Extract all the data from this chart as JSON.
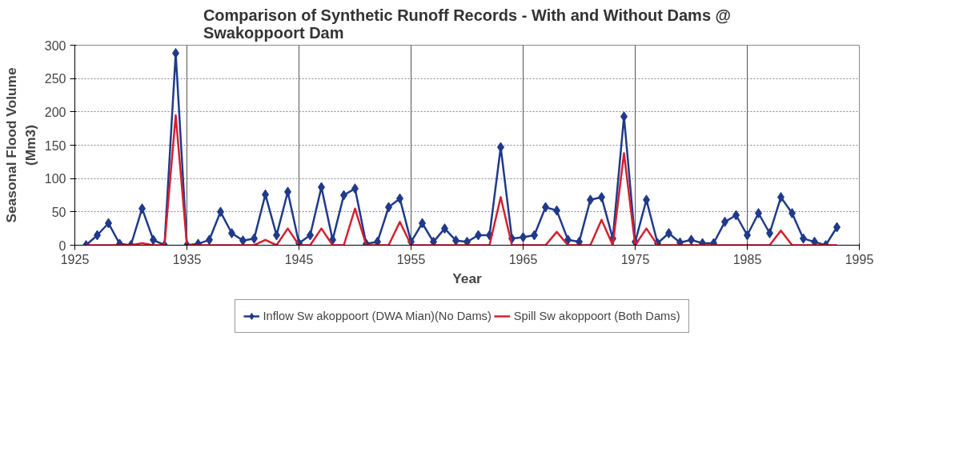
{
  "chart_data": {
    "type": "line",
    "title": "Comparison of Synthetic Runoff Records - With and Without Dams @\nSwakoppoort Dam",
    "xlabel": "Year",
    "ylabel": "Seasonal Flood Volume\n(Mm3)",
    "x": [
      1926,
      1927,
      1928,
      1929,
      1930,
      1931,
      1932,
      1933,
      1934,
      1935,
      1936,
      1937,
      1938,
      1939,
      1940,
      1941,
      1942,
      1943,
      1944,
      1945,
      1946,
      1947,
      1948,
      1949,
      1950,
      1951,
      1952,
      1953,
      1954,
      1955,
      1956,
      1957,
      1958,
      1959,
      1960,
      1961,
      1962,
      1963,
      1964,
      1965,
      1966,
      1967,
      1968,
      1969,
      1970,
      1971,
      1972,
      1973,
      1974,
      1975,
      1976,
      1977,
      1978,
      1979,
      1980,
      1981,
      1982,
      1983,
      1984,
      1985,
      1986,
      1987,
      1988,
      1989,
      1990,
      1991,
      1992,
      1993
    ],
    "series": [
      {
        "name": "Inflow Sw akoppoort (DWA Mian)(No Dams)",
        "color": "#1f3a8a",
        "marker": "diamond",
        "values": [
          0,
          15,
          33,
          2,
          0,
          55,
          8,
          0,
          288,
          0,
          2,
          8,
          50,
          18,
          7,
          10,
          76,
          15,
          80,
          3,
          15,
          87,
          8,
          75,
          85,
          2,
          5,
          57,
          70,
          5,
          33,
          5,
          25,
          7,
          5,
          15,
          15,
          147,
          10,
          12,
          15,
          57,
          52,
          8,
          5,
          68,
          72,
          10,
          193,
          5,
          68,
          3,
          18,
          4,
          8,
          3,
          3,
          35,
          45,
          15,
          48,
          18,
          72,
          48,
          10,
          5,
          0,
          27
        ]
      },
      {
        "name": "Spill Sw akoppoort (Both Dams)",
        "color": "#d42030",
        "marker": "none",
        "values": [
          0,
          0,
          0,
          0,
          0,
          3,
          0,
          0,
          195,
          0,
          0,
          0,
          0,
          0,
          0,
          0,
          8,
          0,
          25,
          0,
          0,
          25,
          0,
          0,
          55,
          0,
          0,
          0,
          35,
          0,
          0,
          0,
          0,
          0,
          0,
          0,
          0,
          72,
          0,
          0,
          0,
          0,
          20,
          0,
          0,
          0,
          38,
          0,
          138,
          0,
          25,
          0,
          0,
          0,
          0,
          0,
          0,
          0,
          0,
          0,
          0,
          0,
          22,
          0,
          0,
          0,
          0,
          0
        ]
      }
    ],
    "xlim": [
      1925,
      1995
    ],
    "xticks": [
      1925,
      1935,
      1945,
      1955,
      1965,
      1975,
      1985,
      1995
    ],
    "ylim": [
      0,
      300
    ],
    "yticks": [
      0,
      50,
      100,
      150,
      200,
      250,
      300
    ],
    "grid": true,
    "legend": "bottom",
    "line_style": "solid"
  }
}
